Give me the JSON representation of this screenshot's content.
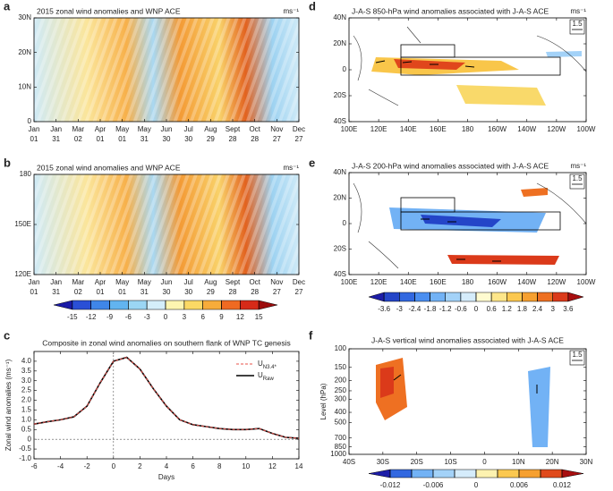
{
  "chart_data": [
    {
      "type": "hovmoller",
      "label": "a",
      "title": "2015 zonal wind anomalies and WNP ACE",
      "unit": "ms⁻¹",
      "categories": [
        {
          "month": "Jan",
          "day": "01"
        },
        {
          "month": "Jan",
          "day": "31"
        },
        {
          "month": "Mar",
          "day": "02"
        },
        {
          "month": "Apr",
          "day": "01"
        },
        {
          "month": "May",
          "day": "01"
        },
        {
          "month": "May",
          "day": "31"
        },
        {
          "month": "Jun",
          "day": "30"
        },
        {
          "month": "Jul",
          "day": "30"
        },
        {
          "month": "Aug",
          "day": "29"
        },
        {
          "month": "Sept",
          "day": "28"
        },
        {
          "month": "Oct",
          "day": "28"
        },
        {
          "month": "Nov",
          "day": "27"
        },
        {
          "month": "Dec",
          "day": "27"
        }
      ],
      "ylim": [
        0,
        30
      ],
      "yticks": [
        0,
        {
          "value": 10,
          "label": "10N"
        },
        {
          "value": 20,
          "label": "20N"
        },
        {
          "value": 30,
          "label": "30N"
        }
      ]
    },
    {
      "type": "hovmoller",
      "label": "b",
      "title": "2015 zonal wind anomalies and WNP ACE",
      "unit": "ms⁻¹",
      "categories": [
        {
          "month": "Jan",
          "day": "01"
        },
        {
          "month": "Jan",
          "day": "31"
        },
        {
          "month": "Mar",
          "day": "02"
        },
        {
          "month": "Apr",
          "day": "01"
        },
        {
          "month": "May",
          "day": "01"
        },
        {
          "month": "May",
          "day": "31"
        },
        {
          "month": "Jun",
          "day": "30"
        },
        {
          "month": "Jul",
          "day": "30"
        },
        {
          "month": "Aug",
          "day": "29"
        },
        {
          "month": "Sept",
          "day": "28"
        },
        {
          "month": "Oct",
          "day": "28"
        },
        {
          "month": "Nov",
          "day": "27"
        },
        {
          "month": "Dec",
          "day": "27"
        }
      ],
      "ylim": [
        120,
        180
      ],
      "yticks": [
        {
          "value": 120,
          "label": "120E"
        },
        {
          "value": 150,
          "label": "150E"
        },
        180
      ]
    },
    {
      "type": "colorbar",
      "levels": [
        -15,
        -12,
        -9,
        -6,
        -3,
        0,
        3,
        6,
        9,
        12,
        15
      ],
      "ticks": [
        -15,
        -12,
        -9,
        -6,
        -3,
        0,
        3,
        6,
        9,
        12,
        15
      ],
      "colors": [
        "#1a1aa6",
        "#2a4fd6",
        "#3f86e8",
        "#62b4f0",
        "#9bd6f4",
        "#d4eefa",
        "#fdf5b0",
        "#fbd965",
        "#f7ac3a",
        "#ef6a22",
        "#d62a18",
        "#9c0d0d"
      ]
    },
    {
      "type": "line",
      "label": "c",
      "title": "Composite in zonal wind anomalies on southern flank of WNP TC genesis",
      "x_label": "Days",
      "y_label": "Zonal wind anomalies (ms⁻¹)",
      "x": [
        -6,
        -5,
        -4,
        -3,
        -2,
        -1,
        0,
        1,
        2,
        3,
        4,
        5,
        6,
        7,
        8,
        9,
        10,
        11,
        12,
        13,
        14
      ],
      "xlim": [
        -6,
        14
      ],
      "xticks": [
        -6,
        -4,
        -2,
        0,
        2,
        4,
        6,
        8,
        10,
        12,
        14
      ],
      "ylim": [
        -1,
        4.5
      ],
      "yticks": [
        {
          "value": -1,
          "label": "-1.0"
        },
        -0.5,
        0,
        0.5,
        {
          "value": 1,
          "label": "1.0"
        },
        1.5,
        {
          "value": 2,
          "label": "2.0"
        },
        2.5,
        {
          "value": 3,
          "label": "3.0"
        },
        3.5,
        {
          "value": 4,
          "label": "4.0"
        }
      ],
      "series": [
        {
          "name": "U",
          "subscript": "N3.4*",
          "color": "#e8504a",
          "dashed": true,
          "values": [
            0.78,
            0.9,
            1.0,
            1.15,
            1.7,
            2.9,
            4.0,
            4.2,
            3.6,
            2.6,
            1.7,
            1.0,
            0.75,
            0.65,
            0.55,
            0.5,
            0.5,
            0.55,
            0.3,
            0.1,
            0.05
          ]
        },
        {
          "name": "U",
          "subscript": "Raw",
          "color": "#000000",
          "dashed": false,
          "values": [
            0.78,
            0.9,
            1.0,
            1.15,
            1.7,
            2.9,
            4.0,
            4.2,
            3.6,
            2.6,
            1.7,
            1.0,
            0.75,
            0.65,
            0.55,
            0.5,
            0.5,
            0.55,
            0.3,
            0.1,
            0.05
          ]
        }
      ]
    },
    {
      "type": "map",
      "label": "d",
      "title": "J-A-S 850-hPa wind anomalies associated with J-A-S ACE",
      "unit": "ms⁻¹",
      "reference_vector": "1.5",
      "xlim": [
        100,
        260
      ],
      "xticks": [
        {
          "value": 100,
          "label": "100E"
        },
        {
          "value": 120,
          "label": "120E"
        },
        {
          "value": 140,
          "label": "140E"
        },
        {
          "value": 160,
          "label": "160E"
        },
        180,
        {
          "value": 200,
          "label": "160W"
        },
        {
          "value": 220,
          "label": "140W"
        },
        {
          "value": 240,
          "label": "120W"
        },
        {
          "value": 260,
          "label": "100W"
        }
      ],
      "ylim": [
        -40,
        40
      ],
      "yticks": [
        {
          "value": -40,
          "label": "40S"
        },
        {
          "value": -20,
          "label": "20S"
        },
        0,
        {
          "value": 20,
          "label": "20N"
        },
        {
          "value": 40,
          "label": "40N"
        }
      ]
    },
    {
      "type": "map",
      "label": "e",
      "title": "J-A-S 200-hPa wind anomalies associated with J-A-S ACE",
      "unit": "ms⁻¹",
      "reference_vector": "1.5",
      "xlim": [
        100,
        260
      ],
      "xticks": [
        {
          "value": 100,
          "label": "100E"
        },
        {
          "value": 120,
          "label": "120E"
        },
        {
          "value": 140,
          "label": "140E"
        },
        {
          "value": 160,
          "label": "160E"
        },
        180,
        {
          "value": 200,
          "label": "160W"
        },
        {
          "value": 220,
          "label": "140W"
        },
        {
          "value": 240,
          "label": "120W"
        },
        {
          "value": 260,
          "label": "100W"
        }
      ],
      "ylim": [
        -40,
        40
      ],
      "yticks": [
        {
          "value": -40,
          "label": "40S"
        },
        {
          "value": -20,
          "label": "20S"
        },
        0,
        {
          "value": 20,
          "label": "20N"
        },
        {
          "value": 40,
          "label": "40N"
        }
      ]
    },
    {
      "type": "colorbar",
      "levels": [
        -3.6,
        -3,
        -2.4,
        -1.8,
        -1.2,
        -0.6,
        0,
        0.6,
        1.2,
        1.8,
        2.4,
        3,
        3.6
      ],
      "ticks": [
        -3.6,
        -3,
        -2.4,
        -1.8,
        -1.2,
        -0.6,
        0,
        0.6,
        1.2,
        1.8,
        2.4,
        3,
        3.6
      ],
      "colors": [
        "#1d1da8",
        "#2445c8",
        "#3268e0",
        "#4a8ef0",
        "#72b2f5",
        "#a3d2f8",
        "#d5ecfb",
        "#fffbd0",
        "#fde68a",
        "#fbc850",
        "#f6a030",
        "#ee7022",
        "#db3a1a",
        "#a80f10"
      ]
    },
    {
      "type": "vertical",
      "label": "f",
      "title": "J-A-S vertical wind anomalies associated with J-A-S ACE",
      "y_label": "Level (hPa)",
      "reference_vector": "1.5",
      "xlim": [
        -40,
        30
      ],
      "xticks": [
        {
          "value": -40,
          "label": "40S"
        },
        {
          "value": -30,
          "label": "30S"
        },
        {
          "value": -20,
          "label": "20S"
        },
        {
          "value": -10,
          "label": "10S"
        },
        0,
        {
          "value": 10,
          "label": "10N"
        },
        {
          "value": 20,
          "label": "20N"
        },
        {
          "value": 30,
          "label": "30N"
        }
      ],
      "ylim": [
        1000,
        100
      ],
      "log_scale": true,
      "yticks": [
        100,
        150,
        200,
        250,
        300,
        400,
        500,
        700,
        850,
        1000
      ]
    },
    {
      "type": "colorbar",
      "levels": [
        -0.012,
        -0.009,
        -0.006,
        -0.003,
        0,
        0.003,
        0.006,
        0.009,
        0.012
      ],
      "ticks": [
        -0.012,
        -0.006,
        0,
        0.006,
        0.012
      ],
      "colors": [
        "#1d1da8",
        "#3268e0",
        "#72b2f5",
        "#a3d2f8",
        "#d5ecfb",
        "#fdf2b0",
        "#fbc850",
        "#f6a030",
        "#e04a1c",
        "#a80f10"
      ]
    }
  ]
}
